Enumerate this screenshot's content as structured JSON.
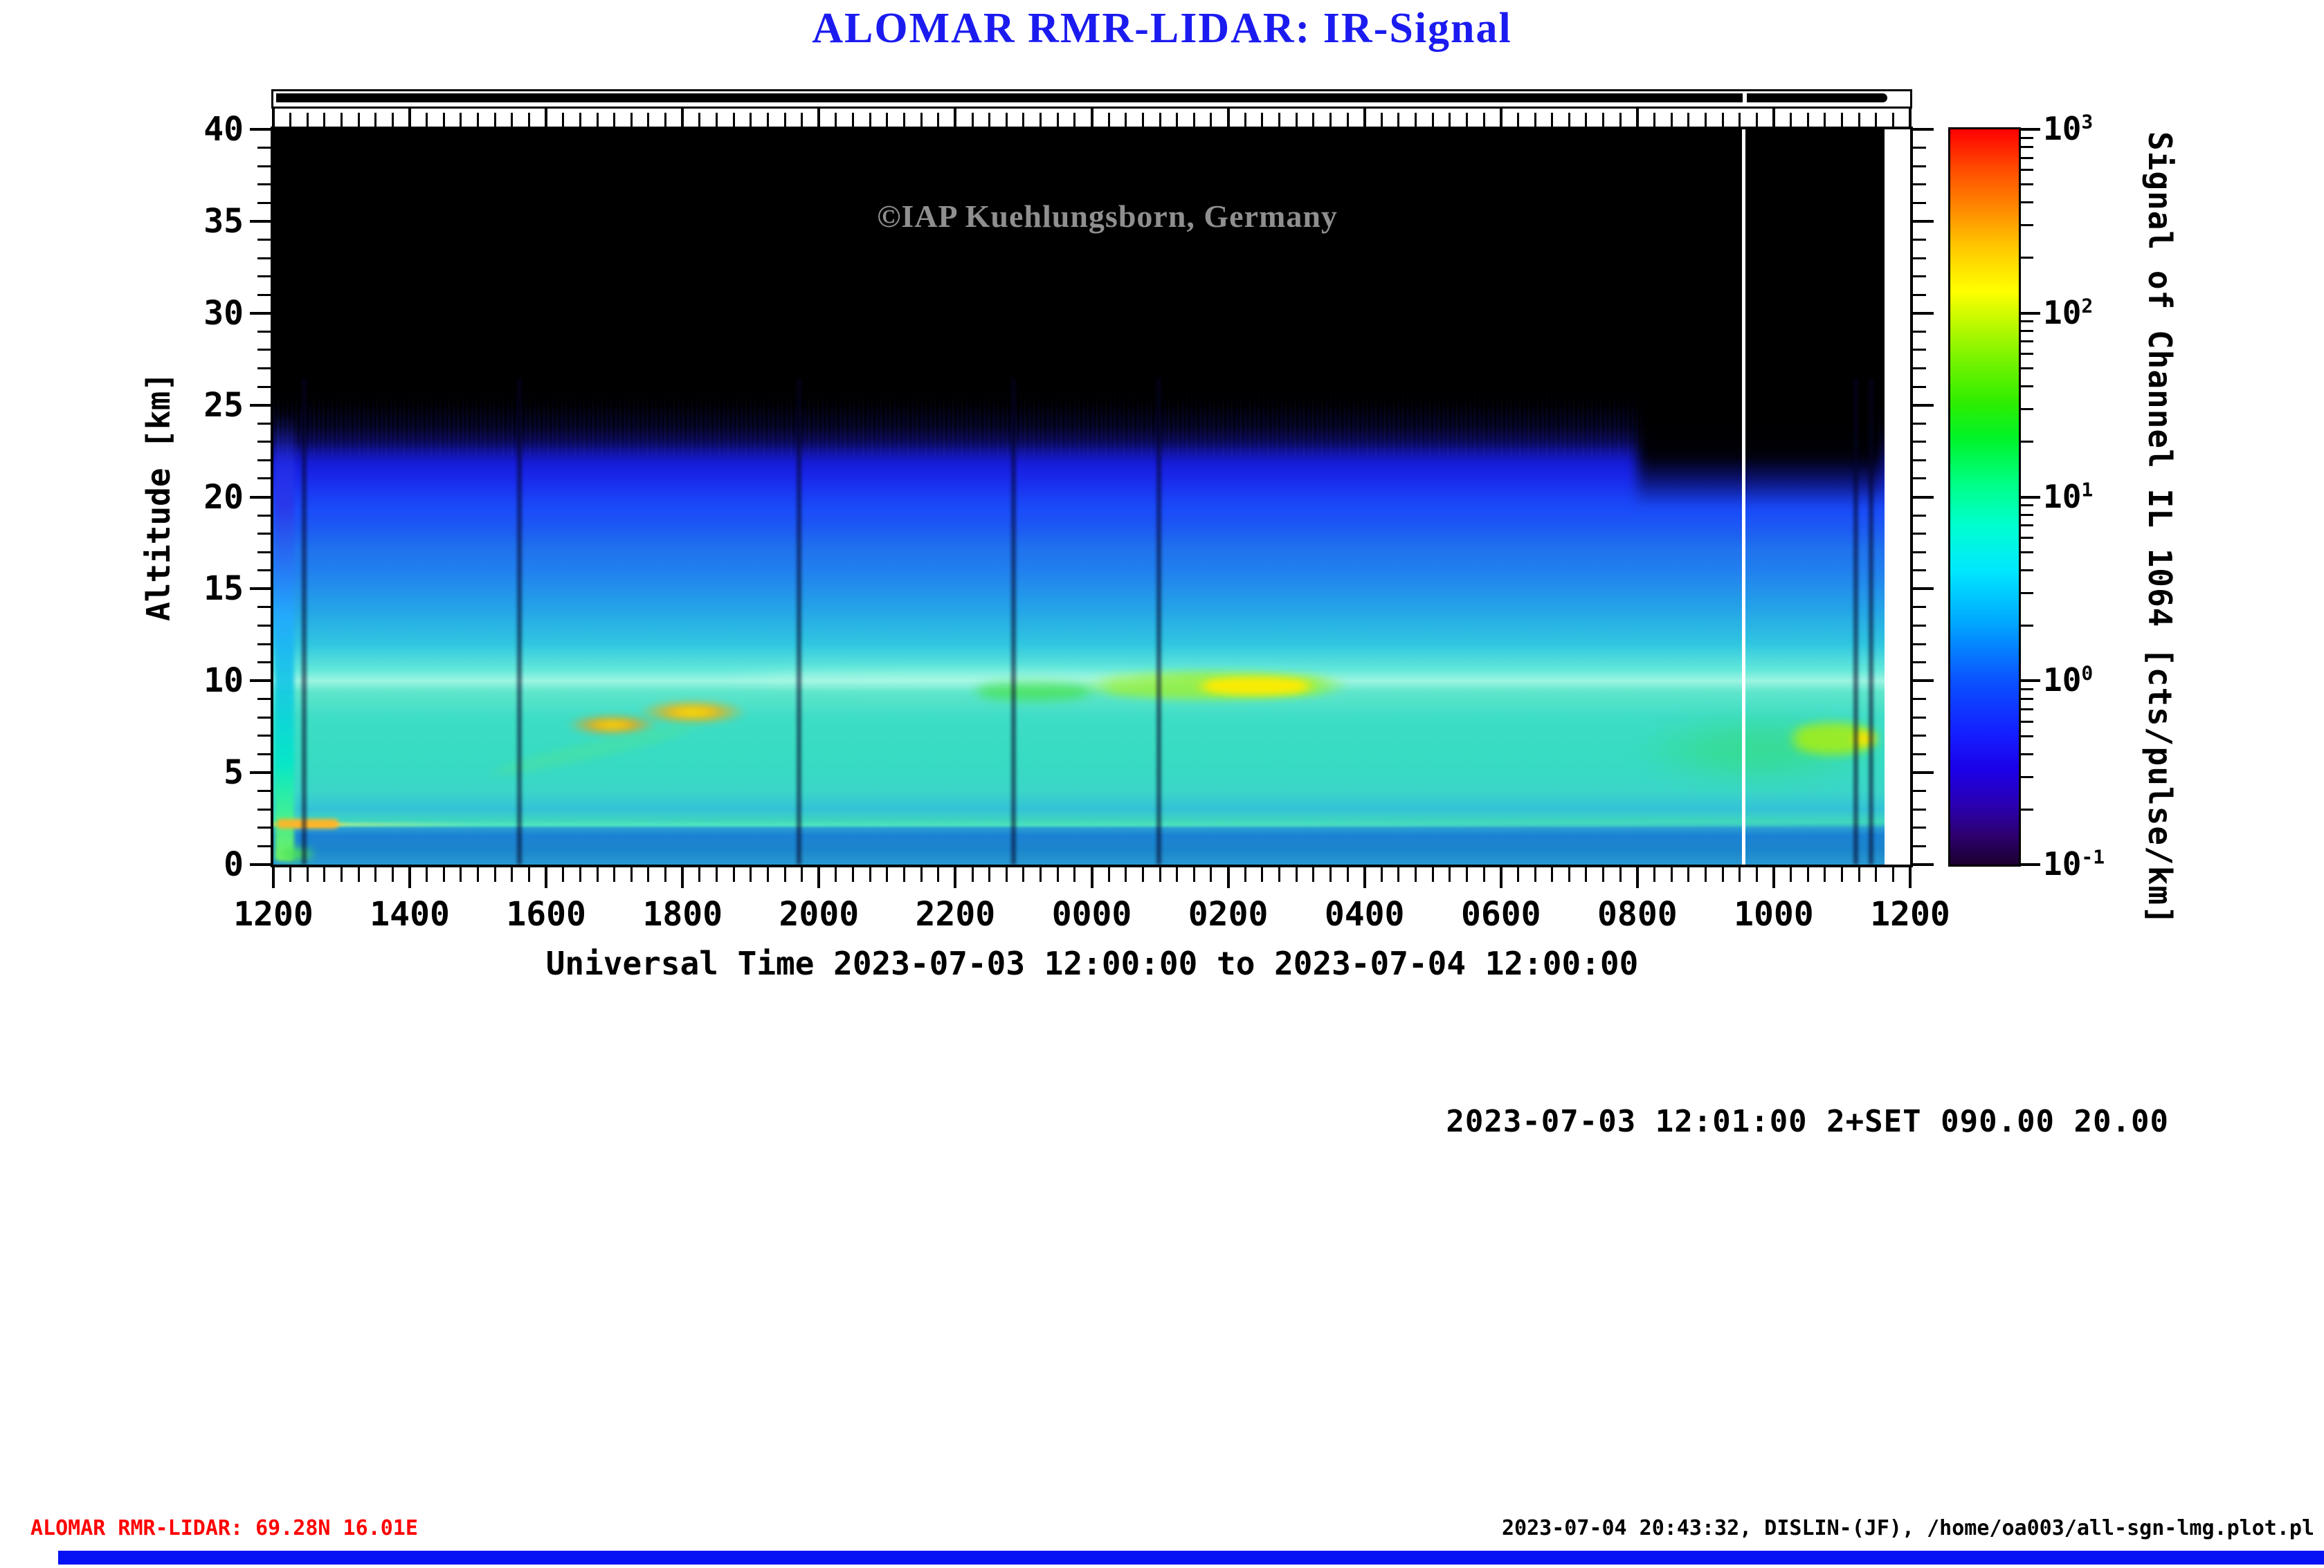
{
  "title": "ALOMAR RMR-LIDAR: IR-Signal",
  "watermark": "©IAP Kuehlungsborn, Germany",
  "axes": {
    "x": {
      "title": "Universal Time 2023-07-03 12:00:00 to 2023-07-04 12:00:00",
      "tick_labels": [
        "1200",
        "1400",
        "1600",
        "1800",
        "2000",
        "2200",
        "0000",
        "0200",
        "0400",
        "0600",
        "0800",
        "1000",
        "1200"
      ],
      "minor_tick_minutes": 15
    },
    "y": {
      "title": "Altitude [km]",
      "tick_labels": [
        "0",
        "5",
        "10",
        "15",
        "20",
        "25",
        "30",
        "35",
        "40"
      ],
      "range_km": [
        0,
        40
      ],
      "minor_tick_km": 1
    }
  },
  "colorbar": {
    "title": "Signal of Channel IL 1064 [cts/pulse/km]",
    "tick_labels": [
      {
        "mantissa": "10",
        "exponent": "3"
      },
      {
        "mantissa": "10",
        "exponent": "2"
      },
      {
        "mantissa": "10",
        "exponent": "1"
      },
      {
        "mantissa": "10",
        "exponent": "0"
      },
      {
        "mantissa": "10",
        "exponent": "-1"
      }
    ],
    "scale": "log10",
    "range": [
      0.1,
      1000
    ],
    "colors_bottom_to_top": [
      "#1c0030",
      "#2a00b0",
      "#1420ff",
      "#0a52ff",
      "#00a8ff",
      "#00e8ff",
      "#00ffd0",
      "#00ff84",
      "#00f428",
      "#30ee00",
      "#7cf400",
      "#c4fa00",
      "#ffff00",
      "#ffc800",
      "#ff8c00",
      "#ff4600",
      "#ff0000"
    ]
  },
  "annotation": "2023-07-03 12:01:00 2+SET 090.00 20.00",
  "footer": {
    "left": "ALOMAR RMR-LIDAR: 69.28N 16.01E",
    "right": "2023-07-04 20:43:32, DISLIN-(JF), /home/oa003/all-sgn-lmg.plot.pl"
  },
  "chart_data": {
    "type": "heatmap",
    "x_axis": {
      "label": "Universal Time 2023-07-03 12:00:00 to 2023-07-04 12:00:00",
      "start": "2023-07-03 12:00",
      "end": "2023-07-04 12:00",
      "major_tick_hours": 2,
      "minor_tick_minutes": 15
    },
    "y_axis": {
      "label": "Altitude [km]",
      "min": 0,
      "max": 40,
      "major_tick_km": 5
    },
    "z_axis": {
      "label": "Signal of Channel IL 1064 [cts/pulse/km]",
      "scale": "log10",
      "min": 0.1,
      "max": 1000
    },
    "background_value": "<0.1 (black) above ~25 km",
    "bands": [
      {
        "alt_km": [
          22,
          25
        ],
        "signal": "0.1-0.3, dark blue with noisy upper edge"
      },
      {
        "alt_km": [
          17,
          22
        ],
        "signal": "~0.3-0.8, blue"
      },
      {
        "alt_km": [
          10.5,
          17
        ],
        "signal": "~1-2, light blue to cyan"
      },
      {
        "alt_km": [
          9.5,
          10.5
        ],
        "signal": "~3-5, bright whitish-cyan band near 10 km"
      },
      {
        "alt_km": [
          2.5,
          9.5
        ],
        "signal": "~2-4, turquoise"
      },
      {
        "alt_km": [
          0,
          2.5
        ],
        "signal": "~1-2, blue with thin bright line at ~2.2 km"
      }
    ],
    "features": [
      {
        "name": "startup-column",
        "shape": "column",
        "color": "#19e6c0",
        "t0": 0.02,
        "t1": 0.3,
        "a0": 0.2,
        "a1": 24.5,
        "blur": 3,
        "opacity": 0.9
      },
      {
        "name": "warm-line-left",
        "shape": "line",
        "color": "#ffb428",
        "t0": 0.05,
        "t1": 0.95,
        "a0": 1.95,
        "a1": 2.5,
        "blur": 3,
        "opacity": 0.95
      },
      {
        "name": "green-patch-bottom-left",
        "shape": "blob",
        "color": "#4ce05a",
        "t0": 0.02,
        "t1": 0.65,
        "a0": 0.05,
        "a1": 1.1,
        "blur": 5,
        "opacity": 0.9
      },
      {
        "name": "aerosol-spots-1",
        "shape": "blob",
        "color": "#ff9900",
        "core": "#ffe400",
        "t0": 4.3,
        "t1": 5.65,
        "a0": 7.0,
        "a1": 8.2,
        "blur": 5,
        "opacity": 0.95
      },
      {
        "name": "aerosol-spots-2",
        "shape": "blob",
        "color": "#ffaa00",
        "core": "#ffe400",
        "t0": 5.35,
        "t1": 6.95,
        "a0": 7.6,
        "a1": 9.0,
        "blur": 5,
        "opacity": 0.95
      },
      {
        "name": "diagonal-streak",
        "shape": "streak",
        "color": "rgba(80,225,150,0.55)",
        "t0": 3.0,
        "t1": 6.4,
        "a0": 5.8,
        "a1": 6.7,
        "rotate": -13,
        "blur": 5,
        "opacity": 0.8
      },
      {
        "name": "green-streak",
        "shape": "streak",
        "color": "rgba(70,226,80,0.9)",
        "t0": 10.2,
        "t1": 12.1,
        "a0": 8.9,
        "a1": 10.0,
        "blur": 7,
        "opacity": 0.85
      },
      {
        "name": "bright-cloud-band",
        "shape": "streak",
        "color": "rgba(150,240,60,0.9)",
        "t0": 11.8,
        "t1": 15.8,
        "a0": 9.0,
        "a1": 10.5,
        "blur": 6,
        "opacity": 0.95
      },
      {
        "name": "bright-cloud-core",
        "shape": "streak",
        "color": "#ffec00",
        "t0": 13.5,
        "t1": 15.3,
        "a0": 9.2,
        "a1": 10.2,
        "blur": 5,
        "opacity": 0.95
      },
      {
        "name": "tropopause-glow",
        "shape": "streak",
        "color": "rgba(190,255,230,0.4)",
        "t0": 6.5,
        "t1": 13.5,
        "a0": 9.7,
        "a1": 10.6,
        "blur": 8,
        "opacity": 0.8
      },
      {
        "name": "right-green-area",
        "shape": "blob",
        "color": "rgba(55,220,110,0.6)",
        "t0": 19.9,
        "t1": 23.55,
        "a0": 4.2,
        "a1": 8.3,
        "blur": 14,
        "opacity": 0.85
      },
      {
        "name": "right-green-core",
        "shape": "streak",
        "color": "rgba(180,240,0,0.85)",
        "t0": 22.2,
        "t1": 23.55,
        "a0": 6.0,
        "a1": 7.7,
        "blur": 7,
        "opacity": 0.9
      },
      {
        "name": "right-yellow-spot",
        "shape": "blob",
        "color": "#ffe000",
        "t0": 23.1,
        "t1": 23.55,
        "a0": 6.3,
        "a1": 7.4,
        "blur": 5,
        "opacity": 0.9
      },
      {
        "name": "right-top-shade",
        "shape": "shade",
        "color": "rgba(0,0,0,0.95)",
        "t0": 20.0,
        "t1": 23.62,
        "a0": 19.5,
        "a1": 25.5,
        "blur": 9,
        "opacity": 1
      }
    ],
    "gap_stripes_hours": [
      0.45,
      3.6,
      7.7,
      10.85,
      12.98,
      23.2,
      23.42
    ],
    "marker_hour": 21.55,
    "data_end_hour": 23.62,
    "status_bar": {
      "on_from_hour": 0.03,
      "gap_at_hour": 21.55,
      "off_after_hour": 23.65
    }
  }
}
